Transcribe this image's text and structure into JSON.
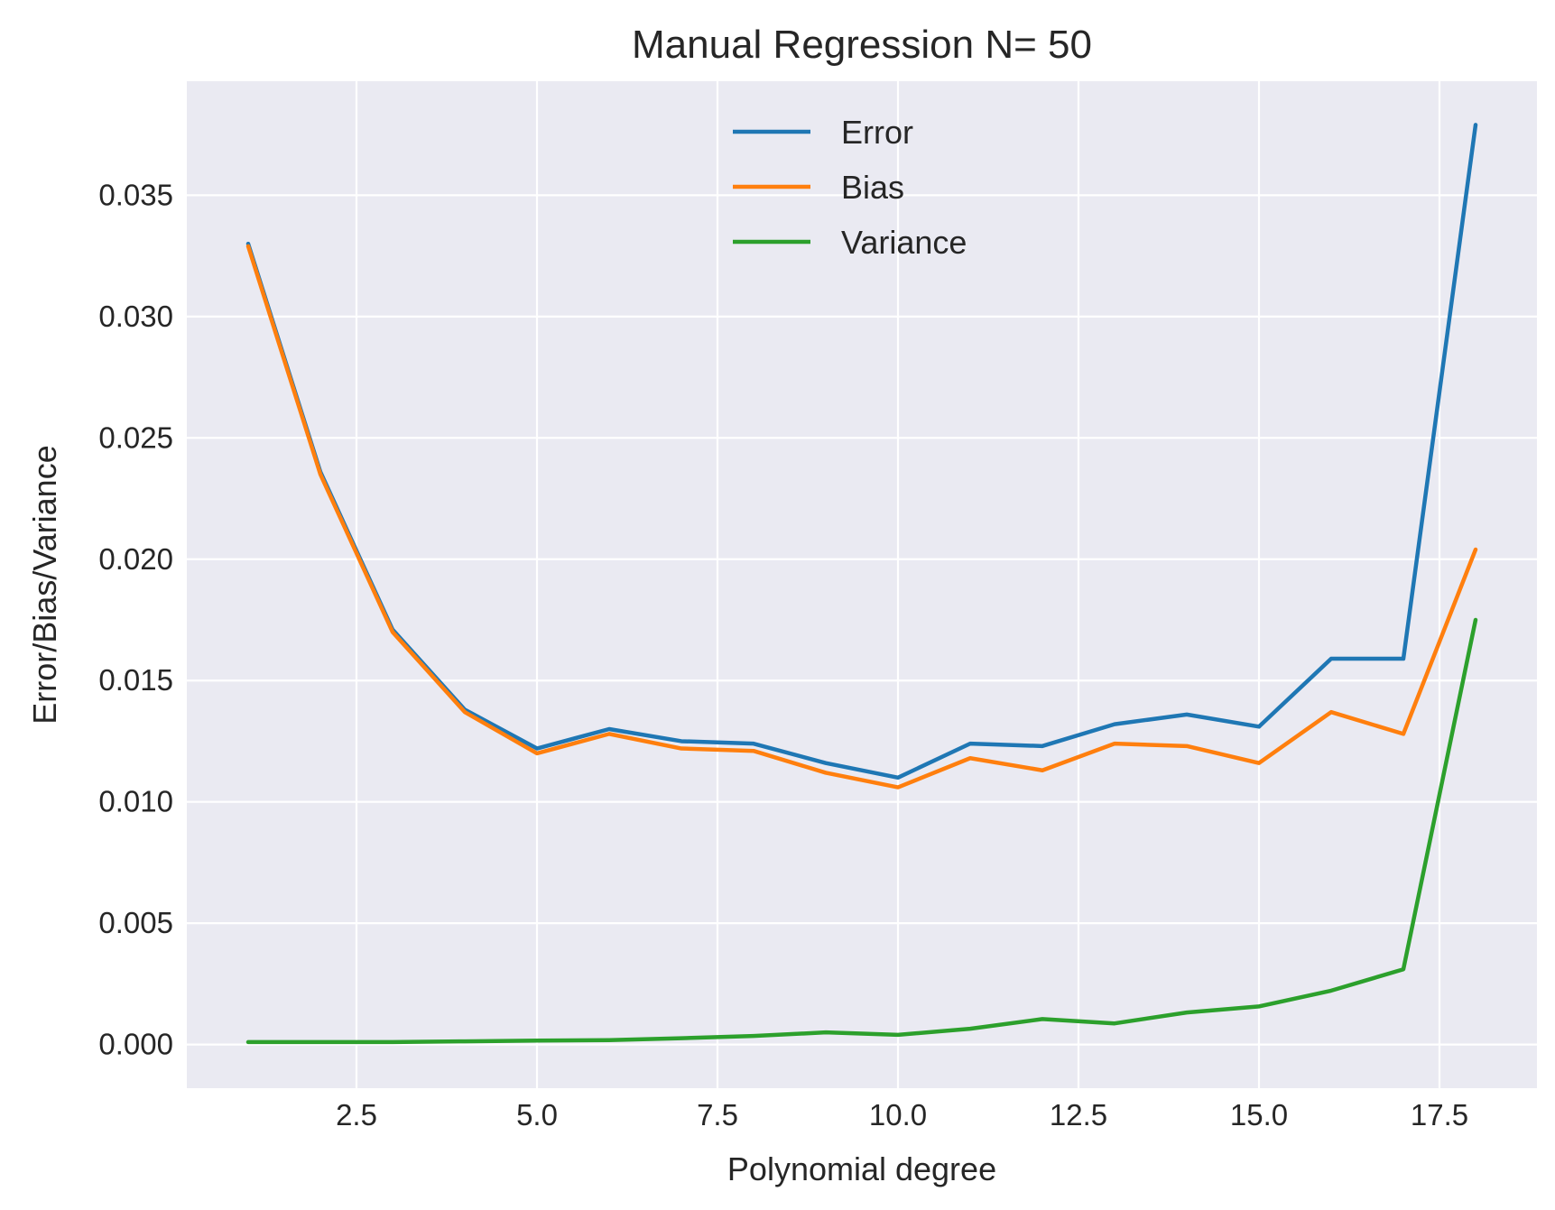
{
  "chart_data": {
    "type": "line",
    "title": "Manual Regression N= 50",
    "xlabel": "Polynomial degree",
    "ylabel": "Error/Bias/Variance",
    "x": [
      1,
      2,
      3,
      4,
      5,
      6,
      7,
      8,
      9,
      10,
      11,
      12,
      13,
      14,
      15,
      16,
      17,
      18
    ],
    "xlim": [
      0.15,
      18.85
    ],
    "ylim": [
      -0.0018,
      0.0397
    ],
    "xticks": [
      2.5,
      5.0,
      7.5,
      10.0,
      12.5,
      15.0,
      17.5
    ],
    "xtick_labels": [
      "2.5",
      "5.0",
      "7.5",
      "10.0",
      "12.5",
      "15.0",
      "17.5"
    ],
    "yticks": [
      0.0,
      0.005,
      0.01,
      0.015,
      0.02,
      0.025,
      0.03,
      0.035
    ],
    "ytick_labels": [
      "0.000",
      "0.005",
      "0.010",
      "0.015",
      "0.020",
      "0.025",
      "0.030",
      "0.035"
    ],
    "grid": true,
    "legend_position": "upper-center",
    "background": "#eaeaf2",
    "series": [
      {
        "name": "Error",
        "color": "#1f77b4",
        "values": [
          0.033,
          0.0236,
          0.0171,
          0.0138,
          0.0122,
          0.013,
          0.0125,
          0.0124,
          0.0116,
          0.011,
          0.0124,
          0.0123,
          0.0132,
          0.0136,
          0.0131,
          0.0159,
          0.0159,
          0.0379
        ]
      },
      {
        "name": "Bias",
        "color": "#ff7f0e",
        "values": [
          0.0329,
          0.0235,
          0.017,
          0.0137,
          0.012,
          0.0128,
          0.0122,
          0.0121,
          0.0112,
          0.0106,
          0.0118,
          0.0113,
          0.0124,
          0.0123,
          0.0116,
          0.0137,
          0.0128,
          0.0204
        ]
      },
      {
        "name": "Variance",
        "color": "#2ca02c",
        "values": [
          0.0001,
          0.0001,
          0.0001,
          0.00013,
          0.00016,
          0.00018,
          0.00026,
          0.00035,
          0.0005,
          0.0004,
          0.00065,
          0.00105,
          0.00087,
          0.00132,
          0.00157,
          0.00222,
          0.0031,
          0.0175
        ]
      }
    ]
  }
}
